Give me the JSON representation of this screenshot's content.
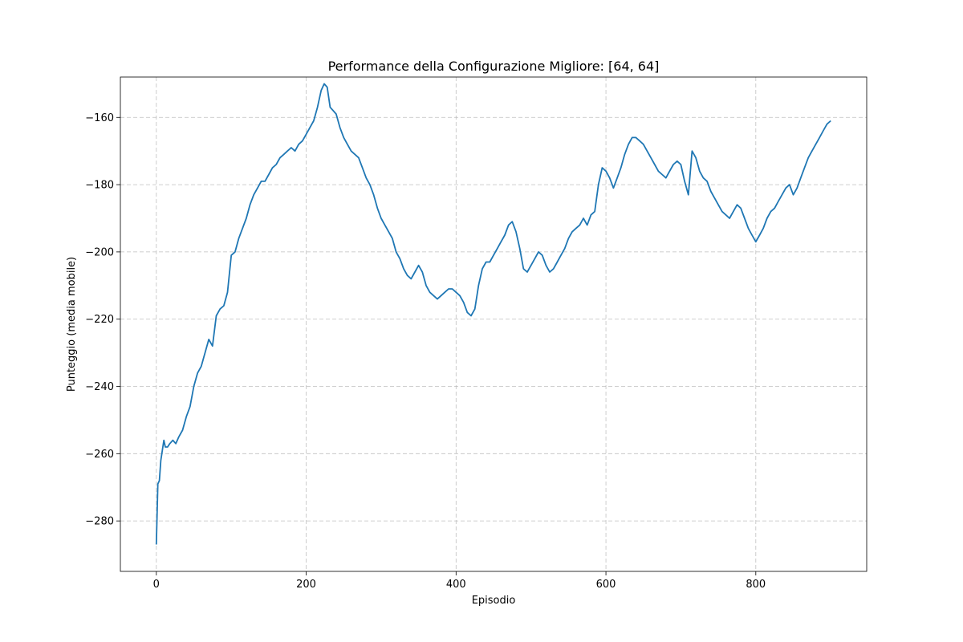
{
  "chart_data": {
    "type": "line",
    "title": "Performance della Configurazione Migliore: [64, 64]",
    "xlabel": "Episodio",
    "ylabel": "Punteggio (media mobile)",
    "xlim": [
      -48,
      948
    ],
    "ylim": [
      -295,
      -148
    ],
    "xticks": [
      0,
      200,
      400,
      600,
      800
    ],
    "yticks": [
      -280,
      -260,
      -240,
      -220,
      -200,
      -180,
      -160
    ],
    "xtick_labels": [
      "0",
      "200",
      "400",
      "600",
      "800"
    ],
    "ytick_labels": [
      "−280",
      "−260",
      "−240",
      "−220",
      "−200",
      "−180",
      "−160"
    ],
    "grid": true,
    "line_color": "#1f77b4",
    "series": [
      {
        "x": [
          0,
          2,
          4,
          6,
          8,
          10,
          12,
          15,
          18,
          22,
          26,
          30,
          35,
          40,
          45,
          50,
          55,
          60,
          65,
          70,
          75,
          80,
          85,
          90,
          95,
          100,
          105,
          110,
          115,
          120,
          125,
          130,
          135,
          140,
          145,
          150,
          155,
          160,
          165,
          170,
          175,
          180,
          185,
          190,
          195,
          200,
          205,
          210,
          215,
          220,
          224,
          228,
          232,
          236,
          240,
          245,
          250,
          255,
          260,
          265,
          270,
          275,
          280,
          285,
          290,
          295,
          300,
          305,
          310,
          315,
          320,
          325,
          330,
          335,
          340,
          345,
          350,
          355,
          360,
          365,
          370,
          375,
          380,
          385,
          390,
          395,
          400,
          405,
          410,
          415,
          420,
          425,
          430,
          435,
          440,
          445,
          450,
          455,
          460,
          465,
          470,
          475,
          480,
          485,
          490,
          495,
          500,
          505,
          510,
          515,
          520,
          525,
          530,
          535,
          540,
          545,
          550,
          555,
          560,
          565,
          570,
          575,
          580,
          585,
          590,
          595,
          600,
          605,
          610,
          615,
          620,
          625,
          630,
          635,
          640,
          645,
          650,
          655,
          660,
          665,
          670,
          675,
          680,
          685,
          690,
          695,
          700,
          705,
          710,
          715,
          720,
          725,
          730,
          735,
          740,
          745,
          750,
          755,
          760,
          765,
          770,
          775,
          780,
          785,
          790,
          795,
          800,
          805,
          810,
          815,
          820,
          825,
          830,
          835,
          840,
          845,
          850,
          855,
          860,
          865,
          870,
          875,
          880,
          885,
          890,
          895,
          900
        ],
        "values": [
          -287,
          -269,
          -268,
          -262,
          -259,
          -256,
          -258,
          -258,
          -257,
          -256,
          -257,
          -255,
          -253,
          -249,
          -246,
          -240,
          -236,
          -234,
          -230,
          -226,
          -228,
          -219,
          -217,
          -216,
          -212,
          -201,
          -200,
          -196,
          -193,
          -190,
          -186,
          -183,
          -181,
          -179,
          -179,
          -177,
          -175,
          -174,
          -172,
          -171,
          -170,
          -169,
          -170,
          -168,
          -167,
          -165,
          -163,
          -161,
          -157,
          -152,
          -150,
          -151,
          -157,
          -158,
          -159,
          -163,
          -166,
          -168,
          -170,
          -171,
          -172,
          -175,
          -178,
          -180,
          -183,
          -187,
          -190,
          -192,
          -194,
          -196,
          -200,
          -202,
          -205,
          -207,
          -208,
          -206,
          -204,
          -206,
          -210,
          -212,
          -213,
          -214,
          -213,
          -212,
          -211,
          -211,
          -212,
          -213,
          -215,
          -218,
          -219,
          -217,
          -210,
          -205,
          -203,
          -203,
          -201,
          -199,
          -197,
          -195,
          -192,
          -191,
          -194,
          -199,
          -205,
          -206,
          -204,
          -202,
          -200,
          -201,
          -204,
          -206,
          -205,
          -203,
          -201,
          -199,
          -196,
          -194,
          -193,
          -192,
          -190,
          -192,
          -189,
          -188,
          -180,
          -175,
          -176,
          -178,
          -181,
          -178,
          -175,
          -171,
          -168,
          -166,
          -166,
          -167,
          -168,
          -170,
          -172,
          -174,
          -176,
          -177,
          -178,
          -176,
          -174,
          -173,
          -174,
          -179,
          -183,
          -170,
          -172,
          -176,
          -178,
          -179,
          -182,
          -184,
          -186,
          -188,
          -189,
          -190,
          -188,
          -186,
          -187,
          -190,
          -193,
          -195,
          -197,
          -195,
          -193,
          -190,
          -188,
          -187,
          -185,
          -183,
          -181,
          -180,
          -183,
          -181,
          -178,
          -175,
          -172,
          -170,
          -168,
          -166,
          -164,
          -162,
          -161
        ]
      }
    ]
  }
}
